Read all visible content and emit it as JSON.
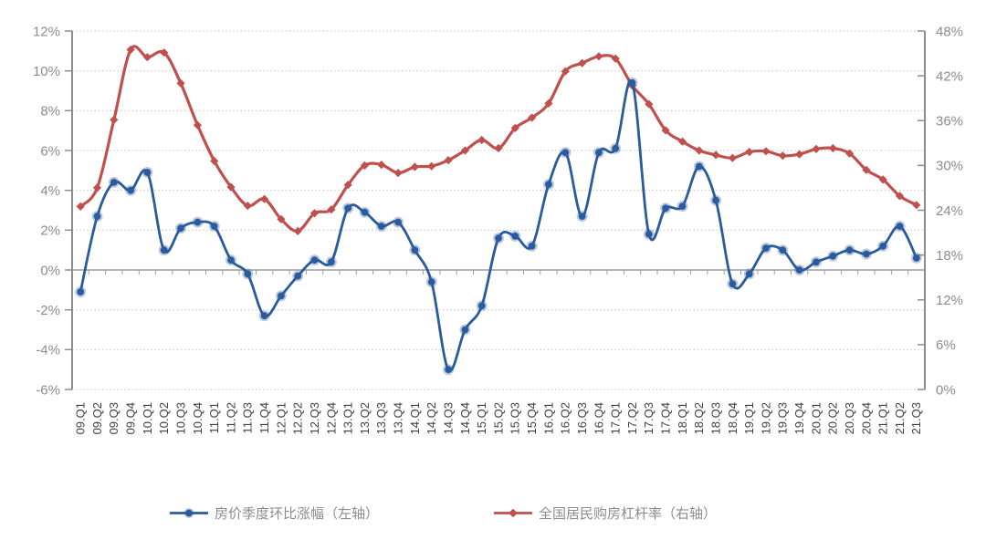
{
  "chart_data": {
    "type": "line",
    "title": "",
    "categories": [
      "09.Q1",
      "09.Q2",
      "09.Q3",
      "09.Q4",
      "10.Q1",
      "10.Q2",
      "10.Q3",
      "10.Q4",
      "11.Q1",
      "11.Q2",
      "11.Q3",
      "11.Q4",
      "12.Q1",
      "12.Q2",
      "12.Q3",
      "12.Q4",
      "13.Q1",
      "13.Q2",
      "13.Q3",
      "13.Q4",
      "14.Q1",
      "14.Q2",
      "14.Q3",
      "14.Q4",
      "15.Q1",
      "15.Q2",
      "15.Q3",
      "15.Q4",
      "16.Q1",
      "16.Q2",
      "16.Q3",
      "16.Q4",
      "17.Q1",
      "17.Q2",
      "17.Q3",
      "17.Q4",
      "18.Q1",
      "18.Q2",
      "18.Q3",
      "18.Q4",
      "19.Q1",
      "19.Q2",
      "19.Q3",
      "19.Q4",
      "20.Q1",
      "20.Q2",
      "20.Q3",
      "20.Q4",
      "21.Q1",
      "21.Q2",
      "21.Q3"
    ],
    "series": [
      {
        "name": "房价季度环比涨幅（左轴）",
        "axis": "left",
        "marker": "circle",
        "color": "#2A5B9C",
        "values": [
          -1.1,
          2.7,
          4.4,
          4.0,
          4.9,
          1.0,
          2.1,
          2.4,
          2.2,
          0.5,
          -0.2,
          -2.3,
          -1.3,
          -0.3,
          0.5,
          0.4,
          3.1,
          2.9,
          2.2,
          2.4,
          1.0,
          -0.6,
          -5.0,
          -3.0,
          -1.8,
          1.6,
          1.7,
          1.2,
          4.3,
          5.9,
          2.7,
          5.9,
          6.1,
          9.4,
          1.8,
          3.1,
          3.2,
          5.2,
          3.5,
          -0.7,
          -0.2,
          1.1,
          1.0,
          0.0,
          0.4,
          0.7,
          1.0,
          0.8,
          1.2,
          2.2,
          0.6
        ]
      },
      {
        "name": "全国居民购房杠杆率（右轴）",
        "axis": "right",
        "marker": "diamond",
        "color": "#C0504D",
        "values": [
          24.5,
          27.0,
          36.1,
          45.5,
          44.5,
          45.1,
          41.0,
          35.4,
          30.6,
          27.1,
          24.6,
          25.5,
          22.8,
          21.2,
          23.6,
          24.1,
          27.4,
          30.0,
          30.1,
          29.0,
          29.8,
          29.9,
          30.7,
          32.0,
          33.4,
          32.3,
          35.0,
          36.4,
          38.3,
          42.6,
          43.7,
          44.6,
          44.3,
          40.7,
          38.2,
          34.7,
          33.2,
          32.0,
          31.4,
          31.0,
          31.8,
          31.9,
          31.3,
          31.5,
          32.2,
          32.3,
          31.6,
          29.4,
          28.1,
          25.9,
          24.7
        ]
      }
    ],
    "left_axis": {
      "min": -6,
      "max": 12,
      "step": 2,
      "tick_labels": [
        "12%",
        "10%",
        "8%",
        "6%",
        "4%",
        "2%",
        "0%",
        "-2%",
        "-4%",
        "-6%"
      ]
    },
    "right_axis": {
      "min": 0,
      "max": 48,
      "step": 6,
      "tick_labels": [
        "48%",
        "42%",
        "36%",
        "30%",
        "24%",
        "18%",
        "12%",
        "6%",
        "0%"
      ]
    },
    "grid": "dotted-horizontal",
    "legend_position": "bottom",
    "colors": {
      "grid": "#c3c3c3",
      "axis": "#8c8c8c",
      "zero_line": "#9e9e9e",
      "y_tick_text": "#8c8c8c",
      "x_tick_text": "#404040",
      "legend_text": "#8c8c8c"
    }
  }
}
